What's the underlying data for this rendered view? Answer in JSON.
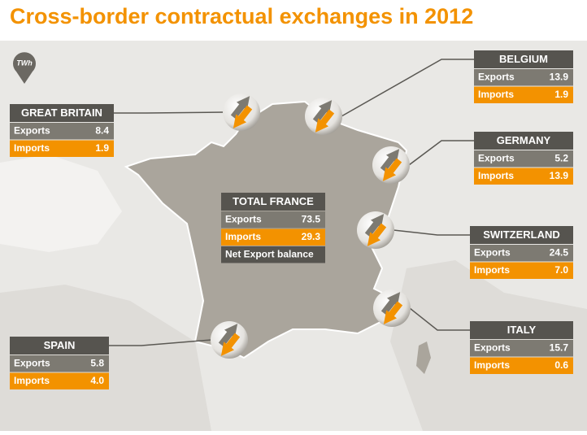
{
  "title": "Cross-border contractual exchanges in 2012",
  "unit": "TWh",
  "total": {
    "name": "TOTAL FRANCE",
    "rows": [
      [
        "Exports",
        "73.5"
      ],
      [
        "Imports",
        "29.3"
      ],
      [
        "Net Export balance"
      ]
    ]
  },
  "boxes": [
    {
      "name": "GREAT BRITAIN",
      "rows": [
        [
          "Exports",
          "8.4"
        ],
        [
          "Imports",
          "1.9"
        ]
      ]
    },
    {
      "name": "BELGIUM",
      "rows": [
        [
          "Exports",
          "13.9"
        ],
        [
          "Imports",
          "1.9"
        ]
      ]
    },
    {
      "name": "GERMANY",
      "rows": [
        [
          "Exports",
          "5.2"
        ],
        [
          "Imports",
          "13.9"
        ]
      ]
    },
    {
      "name": "SWITZERLAND",
      "rows": [
        [
          "Exports",
          "24.5"
        ],
        [
          "Imports",
          "7.0"
        ]
      ]
    },
    {
      "name": "ITALY",
      "rows": [
        [
          "Exports",
          "15.7"
        ],
        [
          "Imports",
          "0.6"
        ]
      ]
    },
    {
      "name": "SPAIN",
      "rows": [
        [
          "Exports",
          "5.8"
        ],
        [
          "Imports",
          "4.0"
        ]
      ]
    }
  ]
}
